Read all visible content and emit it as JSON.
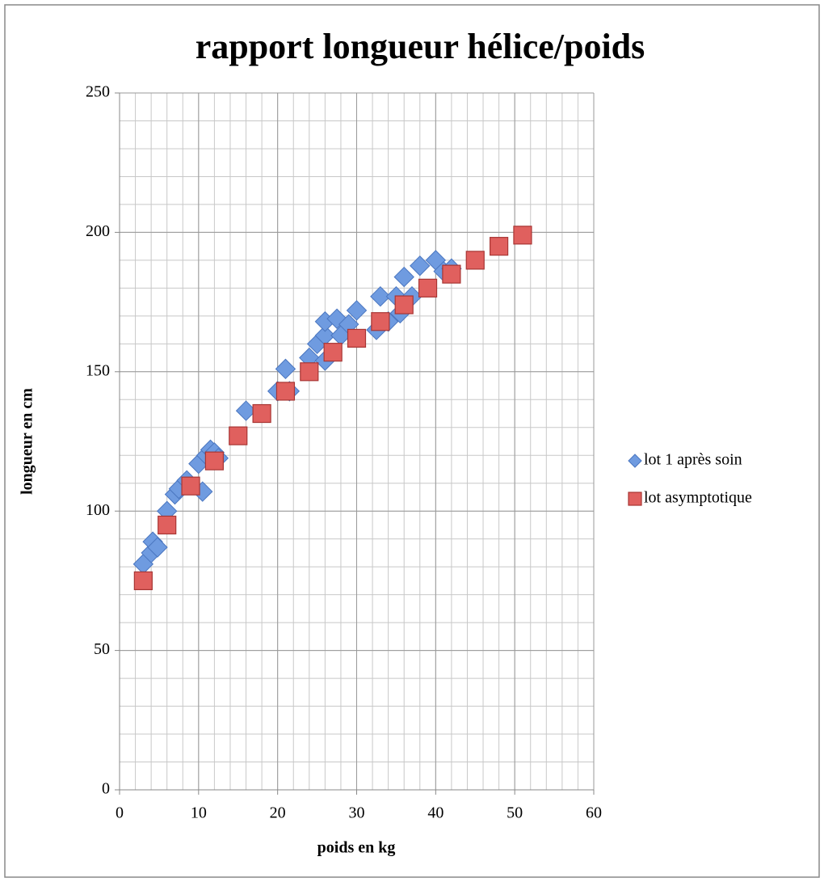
{
  "chart_data": {
    "type": "scatter",
    "title": "rapport longueur hélice/poids",
    "x_label": "poids en kg",
    "y_label": "longueur en cm",
    "xlim": [
      0,
      60
    ],
    "xticks": [
      0,
      10,
      20,
      30,
      40,
      50,
      60
    ],
    "ylim": [
      0,
      250
    ],
    "yticks": [
      0,
      50,
      100,
      150,
      200,
      250
    ],
    "grid": true,
    "x_minor_step": 2,
    "y_minor_step": 10,
    "legend": "right",
    "series": [
      {
        "name": "lot 1 après soin",
        "color": "#6f9be0",
        "marker": "diamond",
        "x": [
          3,
          4,
          4.2,
          4.8,
          6,
          7,
          7.5,
          8.5,
          10,
          10.5,
          11,
          11.5,
          12,
          12.5,
          16,
          20,
          21,
          21.5,
          24,
          25,
          26,
          26,
          26,
          27.5,
          28,
          29,
          30,
          32.5,
          33,
          34,
          35,
          35.5,
          36,
          37,
          38,
          40,
          41,
          42
        ],
        "values": [
          81,
          85,
          89,
          87,
          100,
          106,
          108,
          111,
          117,
          107,
          120,
          122,
          121,
          119,
          136,
          143,
          151,
          143,
          155,
          160,
          154,
          163,
          168,
          169,
          163,
          167,
          172,
          165,
          177,
          168,
          177,
          171,
          184,
          177,
          188,
          190,
          186,
          187
        ]
      },
      {
        "name": "lot asymptotique",
        "color": "#e0605e",
        "marker": "square",
        "x": [
          3,
          6,
          9,
          12,
          15,
          18,
          21,
          24,
          27,
          30,
          33,
          36,
          39,
          42,
          45,
          48,
          51
        ],
        "values": [
          75,
          95,
          109,
          118,
          127,
          135,
          143,
          150,
          157,
          162,
          168,
          174,
          180,
          185,
          190,
          195,
          199
        ]
      }
    ]
  }
}
